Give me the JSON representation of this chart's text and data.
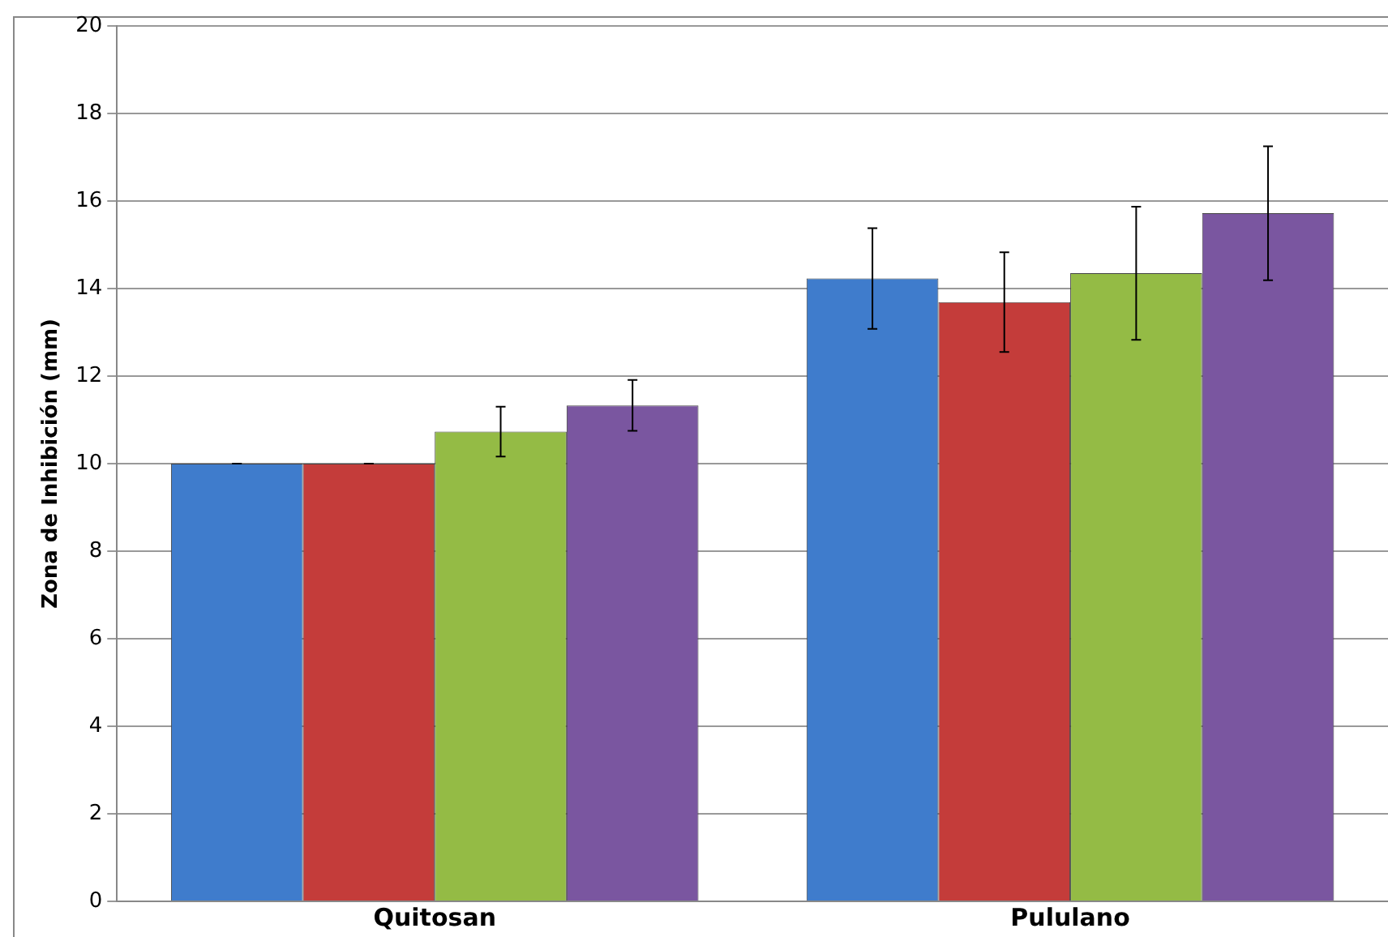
{
  "chart_data": {
    "type": "bar",
    "ylabel": "Zona de Inhibición (mm)",
    "categories": [
      "Quitosan",
      "Pululano"
    ],
    "series": [
      {
        "color": "#3f7ccc",
        "values": [
          10.0,
          14.23
        ],
        "errors": [
          0,
          1.15
        ]
      },
      {
        "color": "#c43c3a",
        "values": [
          10.0,
          13.69
        ],
        "errors": [
          0,
          1.14
        ]
      },
      {
        "color": "#94bb45",
        "values": [
          10.73,
          14.35
        ],
        "errors": [
          0.57,
          1.52
        ]
      },
      {
        "color": "#7a56a0",
        "values": [
          11.33,
          15.72
        ],
        "errors": [
          0.58,
          1.53
        ]
      }
    ],
    "ylim": [
      0,
      20
    ],
    "yticks": [
      0,
      2,
      4,
      6,
      8,
      10,
      12,
      14,
      16,
      18,
      20
    ],
    "grid": "y",
    "legend": false
  }
}
